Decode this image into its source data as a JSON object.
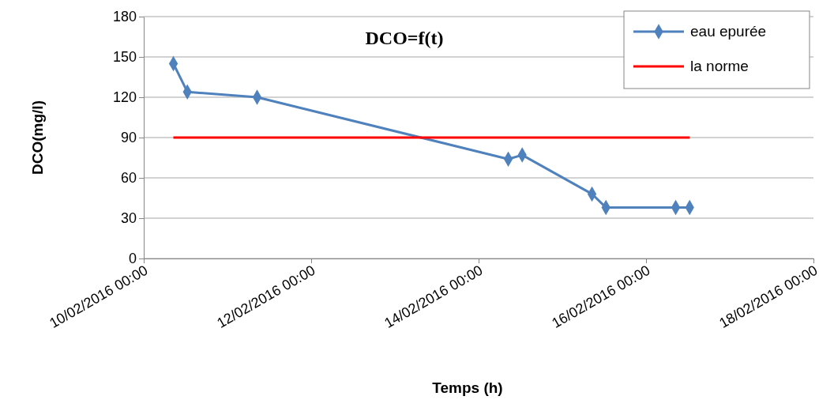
{
  "chart_data": {
    "type": "line",
    "title": "DCO=f(t)",
    "xlabel": "Temps (h)",
    "ylabel": "DCO(mg/l)",
    "xlim": [
      "2016-02-10T00:00",
      "2016-02-18T00:00"
    ],
    "xticks": [
      {
        "value": "2016-02-10T00:00",
        "label": "10/02/2016 00:00"
      },
      {
        "value": "2016-02-12T00:00",
        "label": "12/02/2016 00:00"
      },
      {
        "value": "2016-02-14T00:00",
        "label": "14/02/2016 00:00"
      },
      {
        "value": "2016-02-16T00:00",
        "label": "16/02/2016 00:00"
      },
      {
        "value": "2016-02-18T00:00",
        "label": "18/02/2016 00:00"
      }
    ],
    "ylim": [
      0,
      180
    ],
    "yticks": [
      0,
      30,
      60,
      90,
      120,
      150,
      180
    ],
    "grid": "y",
    "legend": "top right",
    "series": [
      {
        "name": "eau epurée",
        "color": "#4f81bd",
        "marker": "diamond",
        "x": [
          "2016-02-10T08:30",
          "2016-02-10T12:30",
          "2016-02-11T08:30",
          "2016-02-14T08:30",
          "2016-02-14T12:30",
          "2016-02-15T08:30",
          "2016-02-15T12:30",
          "2016-02-16T08:30",
          "2016-02-16T12:30"
        ],
        "values": [
          145,
          124,
          120,
          74,
          77,
          48,
          38,
          38,
          38
        ]
      },
      {
        "name": "la norme",
        "color": "#ff0000",
        "marker": "none",
        "x": [
          "2016-02-10T08:30",
          "2016-02-16T12:30"
        ],
        "values": [
          90,
          90
        ]
      }
    ]
  }
}
